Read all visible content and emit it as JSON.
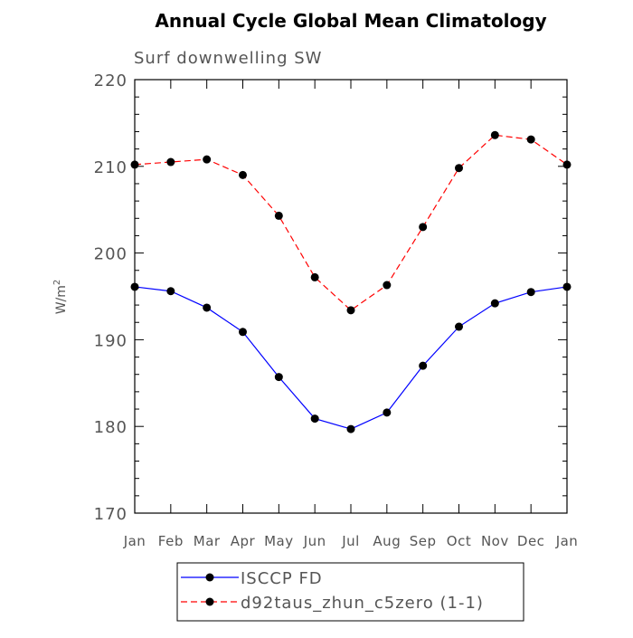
{
  "chart_data": {
    "type": "line",
    "title": "Annual Cycle Global Mean Climatology",
    "subtitle": "Surf downwelling SW",
    "ylabel": "W/m",
    "ylabel_superscript": "2",
    "xlabel": "",
    "categories": [
      "Jan",
      "Feb",
      "Mar",
      "Apr",
      "May",
      "Jun",
      "Jul",
      "Aug",
      "Sep",
      "Oct",
      "Nov",
      "Dec",
      "Jan"
    ],
    "ylim": [
      170,
      220
    ],
    "yticks": [
      "170",
      "180",
      "190",
      "200",
      "210",
      "220"
    ],
    "grid": false,
    "legend_position": "bottom",
    "series": [
      {
        "name": "ISCCP FD",
        "color": "#0000ff",
        "dash": "solid",
        "values": [
          196.1,
          195.6,
          193.7,
          190.9,
          185.7,
          180.9,
          179.7,
          181.6,
          187.0,
          191.5,
          194.2,
          195.5,
          196.1
        ]
      },
      {
        "name": "d92taus_zhun_c5zero (1-1)",
        "color": "#ff0000",
        "dash": "dashed",
        "values": [
          210.2,
          210.5,
          210.8,
          209.0,
          204.3,
          197.2,
          193.4,
          196.3,
          203.0,
          209.8,
          213.6,
          213.1,
          210.2
        ]
      }
    ]
  }
}
